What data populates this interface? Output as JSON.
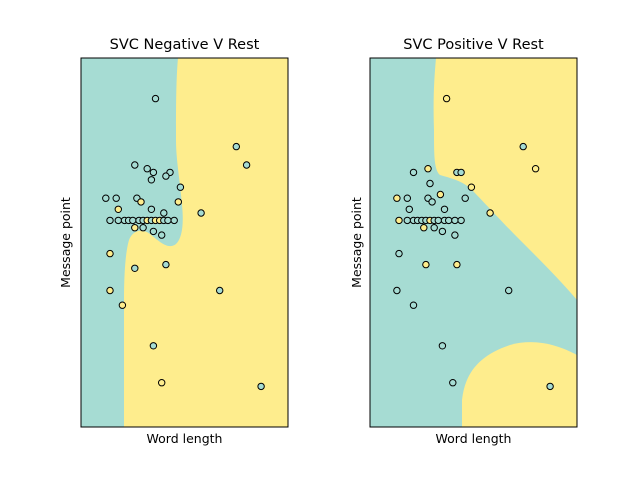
{
  "palette": {
    "teal": "#a6dcd3",
    "yellow": "#feed8d",
    "point_stroke": "#000000"
  },
  "chart_data": [
    {
      "type": "scatter",
      "title": "SVC Negative V Rest",
      "xlabel": "Word length",
      "ylabel": "Message point",
      "xlim": [
        0,
        100
      ],
      "ylim": [
        0,
        100
      ],
      "xticks": [],
      "yticks": [],
      "background": "decision regions (teal / yellow)",
      "points": [
        {
          "x": 36,
          "y": 89,
          "c": "teal"
        },
        {
          "x": 75,
          "y": 76,
          "c": "teal"
        },
        {
          "x": 80,
          "y": 71,
          "c": "teal"
        },
        {
          "x": 26,
          "y": 71,
          "c": "teal"
        },
        {
          "x": 32,
          "y": 70,
          "c": "teal"
        },
        {
          "x": 35,
          "y": 69,
          "c": "teal"
        },
        {
          "x": 43,
          "y": 69,
          "c": "teal"
        },
        {
          "x": 41,
          "y": 68,
          "c": "teal"
        },
        {
          "x": 34,
          "y": 67,
          "c": "teal"
        },
        {
          "x": 48,
          "y": 65,
          "c": "teal"
        },
        {
          "x": 12,
          "y": 62,
          "c": "teal"
        },
        {
          "x": 17,
          "y": 62,
          "c": "teal"
        },
        {
          "x": 27,
          "y": 62,
          "c": "teal"
        },
        {
          "x": 29,
          "y": 61,
          "c": "yellow"
        },
        {
          "x": 47,
          "y": 61,
          "c": "yellow"
        },
        {
          "x": 18,
          "y": 59,
          "c": "yellow"
        },
        {
          "x": 34,
          "y": 59,
          "c": "teal"
        },
        {
          "x": 40,
          "y": 58,
          "c": "teal"
        },
        {
          "x": 58,
          "y": 58,
          "c": "teal"
        },
        {
          "x": 14,
          "y": 56,
          "c": "teal"
        },
        {
          "x": 18,
          "y": 56,
          "c": "teal"
        },
        {
          "x": 21,
          "y": 56,
          "c": "teal"
        },
        {
          "x": 23,
          "y": 56,
          "c": "teal"
        },
        {
          "x": 25,
          "y": 56,
          "c": "teal"
        },
        {
          "x": 28,
          "y": 56,
          "c": "teal"
        },
        {
          "x": 30,
          "y": 56,
          "c": "teal"
        },
        {
          "x": 32,
          "y": 56,
          "c": "yellow"
        },
        {
          "x": 34,
          "y": 56,
          "c": "teal"
        },
        {
          "x": 36,
          "y": 56,
          "c": "yellow"
        },
        {
          "x": 38,
          "y": 56,
          "c": "yellow"
        },
        {
          "x": 40,
          "y": 56,
          "c": "teal"
        },
        {
          "x": 42,
          "y": 56,
          "c": "teal"
        },
        {
          "x": 45,
          "y": 56,
          "c": "teal"
        },
        {
          "x": 26,
          "y": 54,
          "c": "yellow"
        },
        {
          "x": 30,
          "y": 54,
          "c": "teal"
        },
        {
          "x": 35,
          "y": 53,
          "c": "teal"
        },
        {
          "x": 39,
          "y": 52,
          "c": "teal"
        },
        {
          "x": 14,
          "y": 47,
          "c": "yellow"
        },
        {
          "x": 26,
          "y": 43,
          "c": "teal"
        },
        {
          "x": 41,
          "y": 44,
          "c": "teal"
        },
        {
          "x": 14,
          "y": 37,
          "c": "yellow"
        },
        {
          "x": 67,
          "y": 37,
          "c": "teal"
        },
        {
          "x": 20,
          "y": 33,
          "c": "yellow"
        },
        {
          "x": 35,
          "y": 22,
          "c": "teal"
        },
        {
          "x": 39,
          "y": 12,
          "c": "yellow"
        },
        {
          "x": 87,
          "y": 11,
          "c": "teal"
        }
      ]
    },
    {
      "type": "scatter",
      "title": "SVC Positive V Rest",
      "xlabel": "Word length",
      "ylabel": "Message point",
      "xlim": [
        0,
        100
      ],
      "ylim": [
        0,
        100
      ],
      "xticks": [],
      "yticks": [],
      "background": "decision regions (teal / yellow)",
      "points": [
        {
          "x": 37,
          "y": 89,
          "c": "yellow"
        },
        {
          "x": 74,
          "y": 76,
          "c": "teal"
        },
        {
          "x": 80,
          "y": 70,
          "c": "yellow"
        },
        {
          "x": 21,
          "y": 69,
          "c": "teal"
        },
        {
          "x": 28,
          "y": 70,
          "c": "yellow"
        },
        {
          "x": 42,
          "y": 69,
          "c": "teal"
        },
        {
          "x": 44,
          "y": 69,
          "c": "teal"
        },
        {
          "x": 29,
          "y": 66,
          "c": "teal"
        },
        {
          "x": 49,
          "y": 65,
          "c": "yellow"
        },
        {
          "x": 13,
          "y": 62,
          "c": "yellow"
        },
        {
          "x": 18,
          "y": 62,
          "c": "teal"
        },
        {
          "x": 28,
          "y": 62,
          "c": "teal"
        },
        {
          "x": 30,
          "y": 61,
          "c": "teal"
        },
        {
          "x": 34,
          "y": 63,
          "c": "yellow"
        },
        {
          "x": 46,
          "y": 62,
          "c": "teal"
        },
        {
          "x": 19,
          "y": 59,
          "c": "teal"
        },
        {
          "x": 36,
          "y": 59,
          "c": "teal"
        },
        {
          "x": 14,
          "y": 56,
          "c": "yellow"
        },
        {
          "x": 18,
          "y": 56,
          "c": "teal"
        },
        {
          "x": 21,
          "y": 56,
          "c": "teal"
        },
        {
          "x": 23,
          "y": 56,
          "c": "teal"
        },
        {
          "x": 25,
          "y": 56,
          "c": "teal"
        },
        {
          "x": 27,
          "y": 56,
          "c": "teal"
        },
        {
          "x": 29,
          "y": 56,
          "c": "yellow"
        },
        {
          "x": 31,
          "y": 56,
          "c": "teal"
        },
        {
          "x": 33,
          "y": 56,
          "c": "teal"
        },
        {
          "x": 36,
          "y": 56,
          "c": "teal"
        },
        {
          "x": 38,
          "y": 56,
          "c": "teal"
        },
        {
          "x": 41,
          "y": 56,
          "c": "teal"
        },
        {
          "x": 44,
          "y": 56,
          "c": "teal"
        },
        {
          "x": 58,
          "y": 58,
          "c": "yellow"
        },
        {
          "x": 26,
          "y": 54,
          "c": "yellow"
        },
        {
          "x": 31,
          "y": 54,
          "c": "teal"
        },
        {
          "x": 35,
          "y": 53,
          "c": "teal"
        },
        {
          "x": 41,
          "y": 52,
          "c": "teal"
        },
        {
          "x": 14,
          "y": 47,
          "c": "teal"
        },
        {
          "x": 27,
          "y": 44,
          "c": "yellow"
        },
        {
          "x": 42,
          "y": 44,
          "c": "yellow"
        },
        {
          "x": 13,
          "y": 37,
          "c": "teal"
        },
        {
          "x": 67,
          "y": 37,
          "c": "teal"
        },
        {
          "x": 21,
          "y": 33,
          "c": "teal"
        },
        {
          "x": 35,
          "y": 22,
          "c": "teal"
        },
        {
          "x": 40,
          "y": 12,
          "c": "teal"
        },
        {
          "x": 87,
          "y": 11,
          "c": "teal"
        }
      ]
    }
  ]
}
